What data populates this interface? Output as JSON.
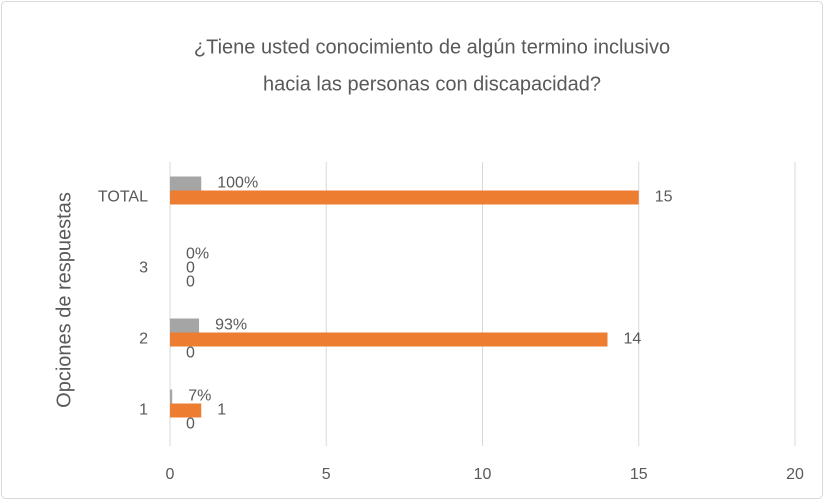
{
  "chart_data": {
    "type": "hbar",
    "title": [
      "¿Tiene usted conocimiento de algún termino inclusivo",
      "hacia las personas con discapacidad?"
    ],
    "y_label": "Opciones de respuestas",
    "categories": [
      "1",
      "2",
      "3",
      "TOTAL"
    ],
    "series": [
      {
        "color": "#4472c4",
        "values": [
          0,
          0,
          0,
          null
        ]
      },
      {
        "color": "#ed7d31",
        "values": [
          1,
          14,
          0,
          15
        ]
      },
      {
        "color": "#a5a5a5",
        "values": [
          0.07,
          0.93,
          0,
          1
        ],
        "value_labels": [
          "7%",
          "93%",
          "0%",
          "100%"
        ]
      }
    ],
    "xlim": [
      0,
      20
    ],
    "xticks": [
      0,
      5,
      10,
      15,
      20
    ],
    "grid": true
  }
}
